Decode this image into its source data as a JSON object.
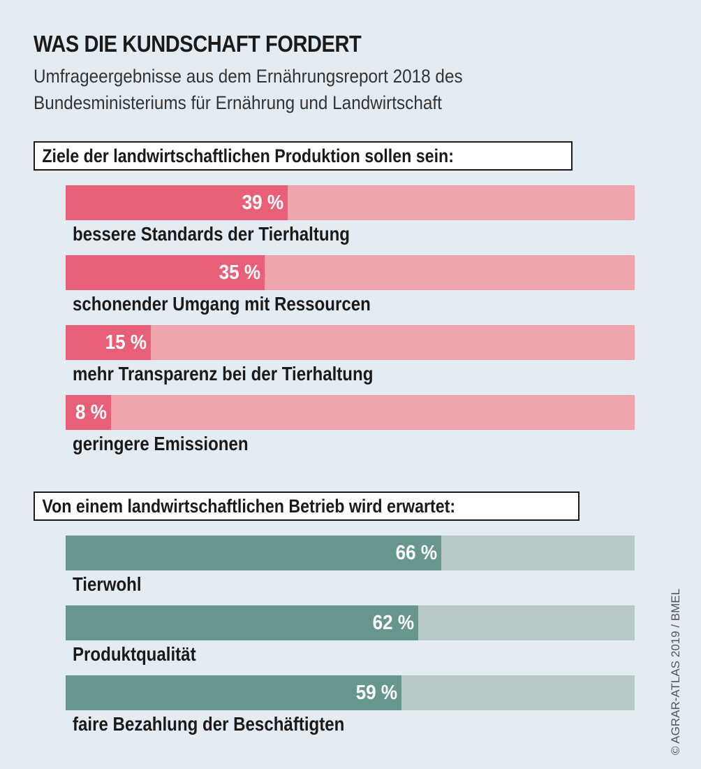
{
  "chart_data": [
    {
      "type": "bar",
      "orientation": "horizontal",
      "title": "WAS DIE KUNDSCHAFT FORDERT",
      "subtitle": "Umfrageergebnisse aus dem Ernährungsreport 2018 des Bundesministeriums für Ernährung und Landwirtschaft",
      "section": "Ziele der landwirtschaftlichen Produktion sollen sein:",
      "categories": [
        "bessere Standards der Tierhaltung",
        "schonender Umgang mit Ressourcen",
        "mehr Transparenz bei der Tierhaltung",
        "geringere Emissionen"
      ],
      "values": [
        39,
        35,
        15,
        8
      ],
      "labels": [
        "39 %",
        "35 %",
        "15 %",
        "8 %"
      ],
      "xlim": [
        0,
        100
      ],
      "colors": {
        "fill": "#e85f78",
        "track": "#f0a5ad"
      }
    },
    {
      "type": "bar",
      "orientation": "horizontal",
      "section": "Von einem landwirtschaftlichen Betrieb wird erwartet:",
      "categories": [
        "Tierwohl",
        "Produktqualität",
        "faire Bezahlung der Beschäftigten"
      ],
      "values": [
        66,
        62,
        59
      ],
      "labels": [
        "66 %",
        "62 %",
        "59 %"
      ],
      "xlim": [
        0,
        100
      ],
      "colors": {
        "fill": "#66968e",
        "track": "#b8c8c7"
      }
    }
  ],
  "title": "WAS DIE KUNDSCHAFT FORDERT",
  "subtitle_line1": "Umfrageergebnisse aus dem Ernährungsreport 2018 des",
  "subtitle_line2": "Bundesministeriums für Ernährung und Landwirtschaft",
  "credit": "© AGRAR-ATLAS 2019 / BMEL"
}
